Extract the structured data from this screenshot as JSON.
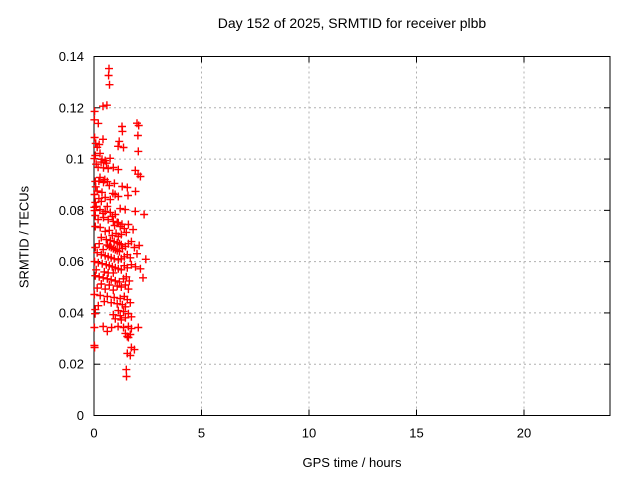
{
  "chart_data": {
    "type": "scatter",
    "title": "Day 152 of 2025, SRMTID for receiver plbb",
    "xlabel": "GPS time / hours",
    "ylabel": "SRMTID / TECUs",
    "xlim": [
      0,
      24
    ],
    "ylim": [
      0,
      0.14
    ],
    "xtick_values": [
      0,
      5,
      10,
      15,
      20
    ],
    "xtick_labels": [
      "0",
      "5",
      "10",
      "15",
      "20"
    ],
    "ytick_values": [
      0,
      0.02,
      0.04,
      0.06,
      0.08,
      0.1,
      0.12,
      0.14
    ],
    "ytick_labels": [
      "0",
      "0.02",
      "0.04",
      "0.06",
      "0.08",
      "0.1",
      "0.12",
      "0.14"
    ],
    "grid": "dotted",
    "legend_position": "none",
    "marker": "plus",
    "colors": {
      "points": "#ff0000",
      "grid": "#b0b0b0",
      "axes": "#000000",
      "background": "#ffffff"
    },
    "series": [
      {
        "name": "SRMTID",
        "color": "#ff0000",
        "points": [
          [
            0.7,
            0.1353
          ],
          [
            0.68,
            0.1326
          ],
          [
            0.72,
            0.129
          ],
          [
            0.42,
            0.1206
          ],
          [
            0.6,
            0.121
          ],
          [
            0.03,
            0.1186
          ],
          [
            0.02,
            0.1153
          ],
          [
            0.2,
            0.1139
          ],
          [
            1.3,
            0.1127
          ],
          [
            2.0,
            0.114
          ],
          [
            2.08,
            0.1131
          ],
          [
            1.32,
            0.1108
          ],
          [
            2.04,
            0.1092
          ],
          [
            0.03,
            0.1084
          ],
          [
            0.42,
            0.1077
          ],
          [
            1.17,
            0.1069
          ],
          [
            0.15,
            0.1046
          ],
          [
            1.12,
            0.105
          ],
          [
            1.37,
            0.1045
          ],
          [
            2.06,
            0.103
          ],
          [
            0.24,
            0.1057
          ],
          [
            0.08,
            0.1061
          ],
          [
            0.02,
            0.1002
          ],
          [
            0.37,
            0.0999
          ],
          [
            0.52,
            0.0994
          ],
          [
            0.75,
            0.1003
          ],
          [
            0.06,
            0.1014
          ],
          [
            0.28,
            0.1022
          ],
          [
            0.19,
            0.0968
          ],
          [
            0.44,
            0.0966
          ],
          [
            0.66,
            0.0963
          ],
          [
            0.9,
            0.0967
          ],
          [
            1.13,
            0.0959
          ],
          [
            1.92,
            0.0956
          ],
          [
            0.1,
            0.098
          ],
          [
            0.58,
            0.0984
          ],
          [
            0.33,
            0.0988
          ],
          [
            2.05,
            0.0941
          ],
          [
            2.16,
            0.0932
          ],
          [
            0.28,
            0.0928
          ],
          [
            0.06,
            0.0913
          ],
          [
            0.23,
            0.0914
          ],
          [
            0.44,
            0.0909
          ],
          [
            0.62,
            0.0912
          ],
          [
            1.31,
            0.0893
          ],
          [
            1.55,
            0.0889
          ],
          [
            0.95,
            0.0905
          ],
          [
            0.71,
            0.0897
          ],
          [
            0.08,
            0.0892
          ],
          [
            0.5,
            0.092
          ],
          [
            1.93,
            0.0874
          ],
          [
            0.15,
            0.0875
          ],
          [
            0.37,
            0.087
          ],
          [
            0.98,
            0.0862
          ],
          [
            1.13,
            0.0854
          ],
          [
            0.52,
            0.085
          ],
          [
            0.03,
            0.0862
          ],
          [
            0.23,
            0.0846
          ],
          [
            0.76,
            0.0842
          ],
          [
            1.58,
            0.0858
          ],
          [
            0.06,
            0.0831
          ],
          [
            0.34,
            0.0835
          ],
          [
            0.88,
            0.0866
          ],
          [
            0.02,
            0.0812
          ],
          [
            0.28,
            0.0803
          ],
          [
            0.52,
            0.0796
          ],
          [
            0.76,
            0.0792
          ],
          [
            0.99,
            0.0784
          ],
          [
            1.45,
            0.0803
          ],
          [
            1.92,
            0.0796
          ],
          [
            0.1,
            0.0815
          ],
          [
            0.62,
            0.0815
          ],
          [
            1.22,
            0.0807
          ],
          [
            0.42,
            0.0788
          ],
          [
            0.85,
            0.0776
          ],
          [
            0.06,
            0.078
          ],
          [
            1.08,
            0.0753
          ],
          [
            0.9,
            0.0757
          ],
          [
            1.13,
            0.0752
          ],
          [
            0.19,
            0.0764
          ],
          [
            0.03,
            0.0799
          ],
          [
            2.33,
            0.0784
          ],
          [
            0.44,
            0.0772
          ],
          [
            0.66,
            0.0764
          ],
          [
            1.3,
            0.0746
          ],
          [
            1.6,
            0.0745
          ],
          [
            0.06,
            0.0737
          ],
          [
            0.29,
            0.0733
          ],
          [
            1.82,
            0.0725
          ],
          [
            0.52,
            0.0718
          ],
          [
            0.96,
            0.0741
          ],
          [
            1.22,
            0.0737
          ],
          [
            1.41,
            0.0729
          ],
          [
            0.71,
            0.0722
          ],
          [
            1.03,
            0.071
          ],
          [
            1.27,
            0.0706
          ],
          [
            0.85,
            0.0702
          ],
          [
            1.13,
            0.0698
          ],
          [
            0.34,
            0.0694
          ],
          [
            1.5,
            0.0714
          ],
          [
            0.57,
            0.0686
          ],
          [
            0.76,
            0.0682
          ],
          [
            0.94,
            0.0678
          ],
          [
            1.08,
            0.0674
          ],
          [
            1.18,
            0.067
          ],
          [
            1.27,
            0.0666
          ],
          [
            0.62,
            0.0665
          ],
          [
            0.71,
            0.0659
          ],
          [
            0.8,
            0.0655
          ],
          [
            0.9,
            0.0651
          ],
          [
            0.99,
            0.0647
          ],
          [
            1.08,
            0.0643
          ],
          [
            1.18,
            0.0639
          ],
          [
            1.32,
            0.0651
          ],
          [
            1.46,
            0.0659
          ],
          [
            1.6,
            0.067
          ],
          [
            1.74,
            0.0678
          ],
          [
            0.24,
            0.067
          ],
          [
            0.06,
            0.0655
          ],
          [
            0.43,
            0.0647
          ],
          [
            1.88,
            0.0655
          ],
          [
            2.1,
            0.0663
          ],
          [
            0.15,
            0.0635
          ],
          [
            0.34,
            0.0627
          ],
          [
            0.52,
            0.0623
          ],
          [
            0.66,
            0.0619
          ],
          [
            0.8,
            0.0615
          ],
          [
            0.94,
            0.0611
          ],
          [
            1.13,
            0.0607
          ],
          [
            1.27,
            0.0611
          ],
          [
            1.41,
            0.0619
          ],
          [
            1.55,
            0.0627
          ],
          [
            2.0,
            0.0631
          ],
          [
            1.69,
            0.0615
          ],
          [
            2.41,
            0.0609
          ],
          [
            0.03,
            0.06
          ],
          [
            0.2,
            0.0596
          ],
          [
            0.38,
            0.0592
          ],
          [
            0.57,
            0.0588
          ],
          [
            0.71,
            0.0584
          ],
          [
            0.85,
            0.058
          ],
          [
            0.99,
            0.0576
          ],
          [
            1.13,
            0.0572
          ],
          [
            1.27,
            0.0568
          ],
          [
            1.41,
            0.0584
          ],
          [
            1.55,
            0.0576
          ],
          [
            1.74,
            0.0588
          ],
          [
            1.93,
            0.058
          ],
          [
            2.16,
            0.0572
          ],
          [
            0.1,
            0.0568
          ],
          [
            0.48,
            0.056
          ],
          [
            0.66,
            0.0556
          ],
          [
            0.9,
            0.0556
          ],
          [
            0.06,
            0.0545
          ],
          [
            0.24,
            0.0541
          ],
          [
            0.43,
            0.0537
          ],
          [
            0.62,
            0.0533
          ],
          [
            0.8,
            0.0529
          ],
          [
            0.99,
            0.0525
          ],
          [
            1.18,
            0.0521
          ],
          [
            1.37,
            0.0533
          ],
          [
            1.5,
            0.0541
          ],
          [
            1.64,
            0.0525
          ],
          [
            0.34,
            0.0513
          ],
          [
            0.71,
            0.0509
          ],
          [
            1.08,
            0.0505
          ],
          [
            1.27,
            0.0501
          ],
          [
            1.46,
            0.0509
          ],
          [
            0.15,
            0.0497
          ],
          [
            0.52,
            0.0493
          ],
          [
            0.9,
            0.0489
          ],
          [
            1.6,
            0.0493
          ],
          [
            2.28,
            0.0537
          ],
          [
            0.02,
            0.0472
          ],
          [
            0.29,
            0.0468
          ],
          [
            0.62,
            0.0464
          ],
          [
            0.94,
            0.046
          ],
          [
            1.22,
            0.0456
          ],
          [
            1.41,
            0.0464
          ],
          [
            1.55,
            0.0452
          ],
          [
            0.48,
            0.0444
          ],
          [
            0.8,
            0.044
          ],
          [
            1.08,
            0.0436
          ],
          [
            1.32,
            0.0432
          ],
          [
            1.69,
            0.044
          ],
          [
            0.2,
            0.0428
          ],
          [
            1.46,
            0.0424
          ],
          [
            0.06,
            0.0413
          ],
          [
            0.05,
            0.0397
          ],
          [
            1.13,
            0.0409
          ],
          [
            1.37,
            0.0405
          ],
          [
            1.6,
            0.0397
          ],
          [
            1.22,
            0.0389
          ],
          [
            0.9,
            0.0393
          ],
          [
            1.46,
            0.0381
          ],
          [
            1.74,
            0.0385
          ],
          [
            0.99,
            0.0377
          ],
          [
            1.27,
            0.0373
          ],
          [
            0.02,
            0.0343
          ],
          [
            0.43,
            0.0347
          ],
          [
            0.82,
            0.0343
          ],
          [
            1.12,
            0.0347
          ],
          [
            1.37,
            0.0343
          ],
          [
            1.6,
            0.0347
          ],
          [
            1.74,
            0.0339
          ],
          [
            2.06,
            0.0343
          ],
          [
            1.46,
            0.032
          ],
          [
            1.69,
            0.0316
          ],
          [
            1.55,
            0.0308
          ],
          [
            1.6,
            0.0304
          ],
          [
            0.62,
            0.0328
          ],
          [
            0.02,
            0.0273
          ],
          [
            0.03,
            0.0265
          ],
          [
            1.74,
            0.0265
          ],
          [
            1.88,
            0.0257
          ],
          [
            1.55,
            0.0242
          ],
          [
            1.69,
            0.0234
          ],
          [
            1.5,
            0.0179
          ],
          [
            1.51,
            0.0152
          ]
        ]
      }
    ]
  }
}
